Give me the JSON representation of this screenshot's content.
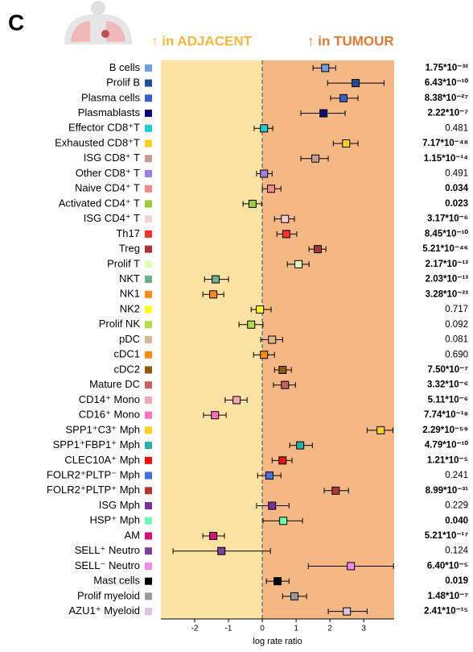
{
  "chart_data": {
    "type": "forest",
    "panel": "C",
    "annotations": [
      "↑ in ADJACENT",
      "↑ in TUMOUR"
    ],
    "annotation_colors": [
      "#f6b83c",
      "#e37a30"
    ],
    "region_colors": [
      "#fde3a3",
      "#f5b885"
    ],
    "xlabel": "log rate ratio",
    "xlim": [
      -3,
      3.9
    ],
    "xticks": [
      -2,
      -1,
      0,
      1,
      2,
      3
    ],
    "ref_line": 0,
    "categories": [
      "B cells",
      "Prolif B",
      "Plasma cells",
      "Plasmablasts",
      "Effector CD8⁺T",
      "Exhausted CD8⁺T",
      "ISG CD8⁺ T",
      "Other CD8⁺ T",
      "Naive CD4⁺ T",
      "Activated CD4⁺ T",
      "ISG CD4⁺ T",
      "Th17",
      "Treg",
      "Prolif T",
      "NKT",
      "NK1",
      "NK2",
      "Prolif NK",
      "pDC",
      "cDC1",
      "cDC2",
      "Mature DC",
      "CD14⁺ Mono",
      "CD16⁺ Mono",
      "SPP1⁺C3⁺ Mph",
      "SPP1⁺FBP1⁺ Mph",
      "CLEC10A⁺ Mph",
      "FOLR2⁺PLTP⁻ Mph",
      "FOLR2⁺PLTP⁺ Mph",
      "ISG Mph",
      "HSP⁺ Mph",
      "AM",
      "SELL⁺ Neutro",
      "SELL⁻ Neutro",
      "Mast cells",
      "Prolif myeloid",
      "AZU1⁺ Myeloid"
    ],
    "values": [
      1.86,
      2.76,
      2.4,
      1.81,
      0.05,
      2.48,
      1.57,
      0.05,
      0.26,
      -0.29,
      0.67,
      0.71,
      1.64,
      1.07,
      -1.38,
      -1.45,
      -0.07,
      -0.33,
      0.29,
      0.05,
      0.6,
      0.67,
      -0.76,
      -1.4,
      3.5,
      1.12,
      0.6,
      0.21,
      2.17,
      0.29,
      0.62,
      -1.45,
      -1.21,
      2.62,
      0.45,
      0.95,
      2.5
    ],
    "ci_low": [
      1.5,
      1.93,
      2.02,
      1.14,
      -0.24,
      2.1,
      1.14,
      -0.17,
      0,
      -0.57,
      0.36,
      0.43,
      1.38,
      0.74,
      -1.71,
      -1.76,
      -0.33,
      -0.69,
      -0.05,
      -0.26,
      0.36,
      0.33,
      -1.1,
      -1.74,
      3.1,
      0.81,
      0.29,
      -0.14,
      1.83,
      -0.17,
      0.02,
      -1.76,
      -2.64,
      1.36,
      0.12,
      0.6,
      1.95
    ],
    "ci_high": [
      2.17,
      3.6,
      2.83,
      2.45,
      0.31,
      2.83,
      1.95,
      0.29,
      0.55,
      -0.02,
      0.95,
      1.02,
      1.88,
      1.38,
      -1.0,
      -1.14,
      0.26,
      0.02,
      0.6,
      0.36,
      0.86,
      0.98,
      -0.45,
      -1.07,
      3.86,
      1.48,
      0.88,
      0.55,
      2.55,
      0.79,
      1.19,
      -1.12,
      0.24,
      3.88,
      0.79,
      1.31,
      3.1
    ],
    "colors": [
      "#6f9fe0",
      "#1f4e96",
      "#3a5fcd",
      "#0a0a80",
      "#1fcfcf",
      "#ffd21f",
      "#c79a98",
      "#9c80e3",
      "#f08a8a",
      "#9ccc3c",
      "#f1d3d3",
      "#ff3030",
      "#a83434",
      "#e3ffb3",
      "#69b08c",
      "#ff8c10",
      "#ffff1a",
      "#b0de46",
      "#d9b88e",
      "#ff8c10",
      "#8c5a0a",
      "#cd6060",
      "#f4a8b5",
      "#ff6ec0",
      "#ffd21f",
      "#22b0a8",
      "#ee1010",
      "#4470e0",
      "#b03838",
      "#7c30a0",
      "#6effad",
      "#d4127c",
      "#7c4099",
      "#ee8cee",
      "#000000",
      "#9a9a9a",
      "#dcc4dc"
    ],
    "p_values": [
      "1.75*10⁻³²",
      "6.43*10⁻¹⁰",
      "8.38*10⁻²⁷",
      "2.22*10⁻⁷",
      "0.481",
      "7.17*10⁻⁴⁸",
      "1.15*10⁻¹⁴",
      "0.491",
      "0.034",
      "0.023",
      "3.17*10⁻⁶",
      "8.45*10⁻¹⁰",
      "5.21*10⁻⁴⁶",
      "2.17*10⁻¹³",
      "2.03*10⁻¹³",
      "3.28*10⁻²³",
      "0.717",
      "0.092",
      "0.081",
      "0.690",
      "7.50*10⁻⁷",
      "3.32*10⁻⁶",
      "5.11*10⁻⁶",
      "7.74*10⁻¹⁸",
      "2.29*10⁻⁵⁹",
      "4.79*10⁻¹⁰",
      "1.21*10⁻⁵",
      "0.241",
      "8.99*10⁻³¹",
      "0.229",
      "0.040",
      "5.21*10⁻¹⁷",
      "0.124",
      "6.40*10⁻⁵",
      "0.019",
      "1.48*10⁻⁷",
      "2.41*10⁻¹⁵"
    ],
    "p_bold": [
      true,
      true,
      true,
      true,
      false,
      true,
      true,
      false,
      true,
      true,
      true,
      true,
      true,
      true,
      true,
      true,
      false,
      false,
      false,
      false,
      true,
      true,
      true,
      true,
      true,
      true,
      true,
      false,
      true,
      false,
      true,
      true,
      false,
      true,
      true,
      true,
      true
    ]
  }
}
